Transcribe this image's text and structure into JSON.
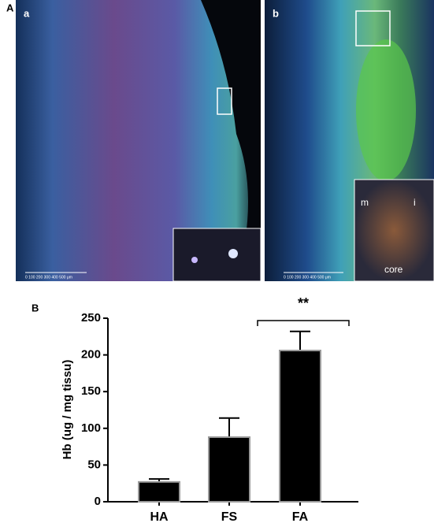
{
  "panels": {
    "label": "A",
    "a": {
      "label": "a",
      "scale": "0 100 200 300 400 500 μm"
    },
    "b": {
      "label": "b",
      "scale": "0 100 200 300 400 500 μm",
      "inset_labels": [
        "m",
        "i",
        "core"
      ]
    }
  },
  "chart_data": {
    "type": "bar",
    "panel_label": "B",
    "ylabel": "Hb (ug / mg tissu)",
    "categories": [
      "HA",
      "FS",
      "FA"
    ],
    "values": [
      27,
      88,
      206
    ],
    "errors": [
      4,
      26,
      26
    ],
    "color": "#000000",
    "edge_color": "#9a9a9a",
    "ylim": [
      0,
      250
    ],
    "yticks": [
      0,
      50,
      100,
      150,
      200,
      250
    ],
    "annotation": "**"
  }
}
